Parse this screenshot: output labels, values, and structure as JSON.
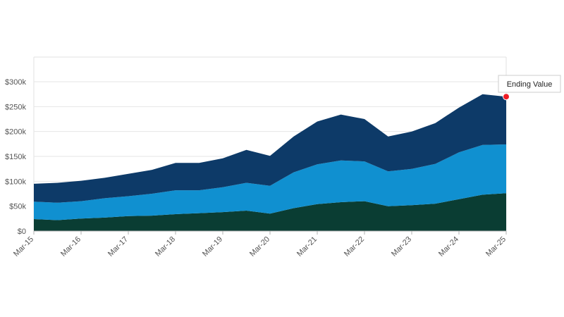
{
  "chart_data": {
    "type": "area",
    "stacked": true,
    "title": "",
    "xlabel": "",
    "ylabel": "",
    "ylim": [
      0,
      300000
    ],
    "y_ticks": [
      "$0",
      "$50k",
      "$100k",
      "$150k",
      "$200k",
      "$250k",
      "$300k"
    ],
    "x_ticks": [
      "Mar-15",
      "Mar-16",
      "Mar-17",
      "Mar-18",
      "Mar-19",
      "Mar-20",
      "Mar-21",
      "Mar-22",
      "Mar-23",
      "Mar-24",
      "Mar-25"
    ],
    "grid": true,
    "legend": "none",
    "x": [
      "2015-03",
      "2015-09",
      "2016-03",
      "2016-09",
      "2017-03",
      "2017-09",
      "2018-03",
      "2018-09",
      "2019-03",
      "2019-09",
      "2020-03",
      "2020-09",
      "2021-03",
      "2021-09",
      "2022-03",
      "2022-09",
      "2023-03",
      "2023-09",
      "2024-03",
      "2024-09",
      "2025-03"
    ],
    "series": [
      {
        "color": "#0a3d33",
        "values": [
          24000,
          22000,
          25000,
          27000,
          30000,
          31000,
          34000,
          36000,
          38000,
          41000,
          35000,
          46000,
          54000,
          58000,
          60000,
          50000,
          52000,
          55000,
          64000,
          73000,
          76000
        ]
      },
      {
        "color": "#1090d0",
        "values": [
          35000,
          35000,
          35000,
          39000,
          40000,
          44000,
          48000,
          46000,
          50000,
          56000,
          56000,
          72000,
          80000,
          84000,
          80000,
          70000,
          73000,
          80000,
          94000,
          100000,
          98000
        ]
      },
      {
        "color": "#0d3a68",
        "values": [
          36000,
          40000,
          41000,
          41000,
          45000,
          48000,
          55000,
          55000,
          58000,
          66000,
          60000,
          72000,
          86000,
          92000,
          85000,
          70000,
          75000,
          82000,
          90000,
          102000,
          96000
        ]
      }
    ],
    "annotation": {
      "label": "Ending Value",
      "marker_color": "#ee1c25"
    }
  }
}
